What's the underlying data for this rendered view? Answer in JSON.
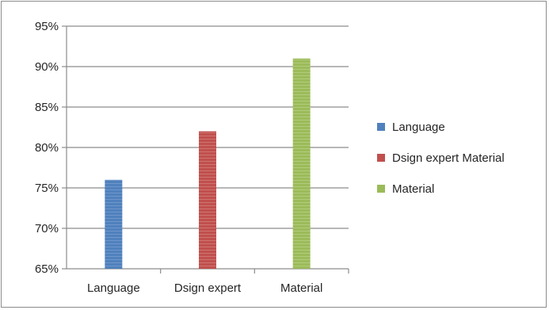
{
  "chart_data": {
    "type": "bar",
    "categories": [
      "Language",
      "Dsign expert",
      "Material"
    ],
    "series": [
      {
        "name": "Language",
        "values": [
          76,
          null,
          null
        ],
        "color": "#4f81bd"
      },
      {
        "name": "Dsign expert Material",
        "values": [
          null,
          82,
          null
        ],
        "color": "#c0504d"
      },
      {
        "name": "Material",
        "values": [
          null,
          null,
          91
        ],
        "color": "#9bbb59"
      }
    ],
    "ylim": [
      65,
      95
    ],
    "yticks": [
      65,
      70,
      75,
      80,
      85,
      90,
      95
    ],
    "ytick_labels": [
      "65%",
      "70%",
      "75%",
      "80%",
      "85%",
      "90%",
      "95%"
    ],
    "grid": true,
    "legend_position": "right"
  }
}
